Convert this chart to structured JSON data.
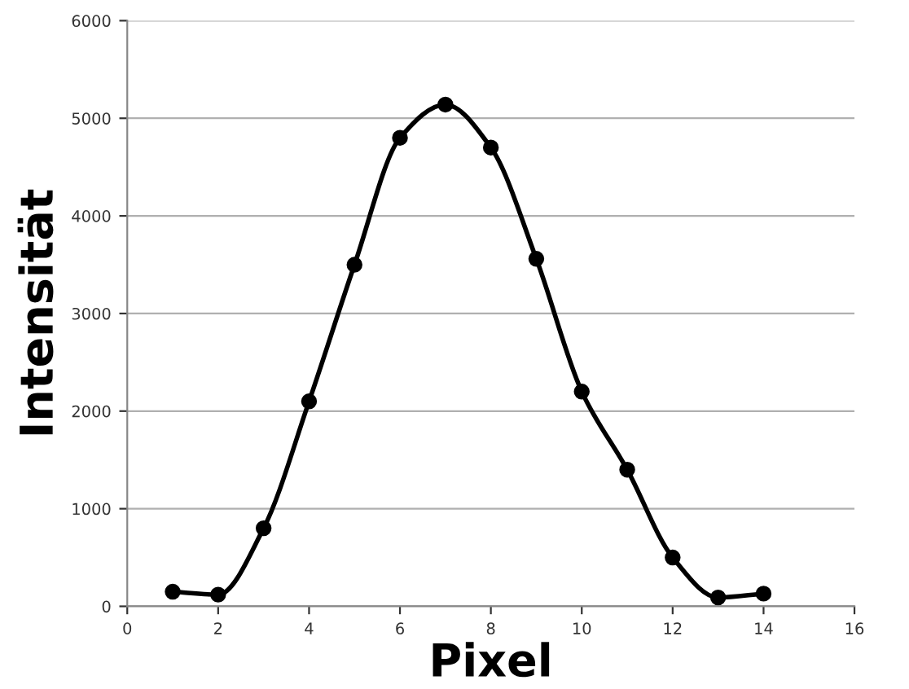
{
  "chart_data": {
    "type": "line",
    "xlabel": "Pixel",
    "ylabel": "Intensität",
    "x": [
      1,
      2,
      3,
      4,
      5,
      6,
      7,
      8,
      9,
      10,
      11,
      12,
      13,
      14
    ],
    "series": [
      {
        "color": "#000000",
        "values": [
          150,
          120,
          800,
          2100,
          3500,
          4800,
          5140,
          4700,
          3560,
          2200,
          1400,
          500,
          90,
          130
        ]
      }
    ],
    "xlim": [
      0,
      16
    ],
    "xticks": [
      0,
      2,
      4,
      6,
      8,
      10,
      12,
      14,
      16
    ],
    "ylim": [
      0,
      6000
    ],
    "yticks": [
      0,
      1000,
      2000,
      3000,
      4000,
      5000,
      6000
    ],
    "grid": "y",
    "marker": "circle",
    "line_style": "solid",
    "legend": false
  }
}
